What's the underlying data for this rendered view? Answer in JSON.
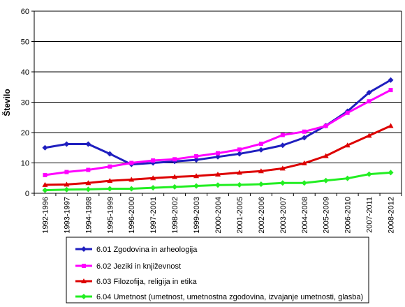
{
  "chart_data": {
    "type": "line",
    "title": "",
    "xlabel": "",
    "ylabel": "Število",
    "ylim": [
      0,
      60
    ],
    "yticks": [
      0,
      10,
      20,
      30,
      40,
      50,
      60
    ],
    "grid": "horizontal",
    "legend_position": "bottom",
    "categories": [
      "1992-1996",
      "1993-1997",
      "1994-1998",
      "1995-1999",
      "1996-2000",
      "1997-2001",
      "1998-2002",
      "1999-2003",
      "2000-2004",
      "2001-2005",
      "2002-2006",
      "2003-2007",
      "2004-2008",
      "2005-2009",
      "2006-2010",
      "2007-2011",
      "2008-2012"
    ],
    "series": [
      {
        "name": "6.01 Zgodovina in arheologija",
        "color": "#1f1fbf",
        "marker": "diamond",
        "values": [
          15,
          16.2,
          16.2,
          13,
          9.5,
          10,
          10.5,
          11,
          12,
          13,
          14.3,
          15.8,
          18.3,
          22.3,
          27,
          33.2,
          37.3
        ]
      },
      {
        "name": "6.02 Jeziki in književnost",
        "color": "#ff00ff",
        "marker": "square",
        "values": [
          6,
          7,
          7.7,
          8.8,
          10,
          10.8,
          11.2,
          12.2,
          13.2,
          14.4,
          16.3,
          19.2,
          20.3,
          22.2,
          26.5,
          30.3,
          34
        ]
      },
      {
        "name": "6.03 Filozofija, religija in etika",
        "color": "#dd0000",
        "marker": "triangle",
        "values": [
          2.8,
          2.9,
          3.4,
          4.1,
          4.5,
          5,
          5.4,
          5.7,
          6.2,
          6.8,
          7.3,
          8.2,
          9.9,
          12.3,
          15.8,
          19,
          22.2
        ]
      },
      {
        "name": "6.04 Umetnost (umetnost, umetnostna zgodovina, izvajanje umetnosti, glasba)",
        "color": "#22ee22",
        "marker": "diamond",
        "values": [
          1,
          1.2,
          1.3,
          1.5,
          1.5,
          1.8,
          2.1,
          2.4,
          2.7,
          2.8,
          3,
          3.4,
          3.4,
          4.2,
          4.9,
          6.3,
          6.8
        ]
      }
    ]
  }
}
